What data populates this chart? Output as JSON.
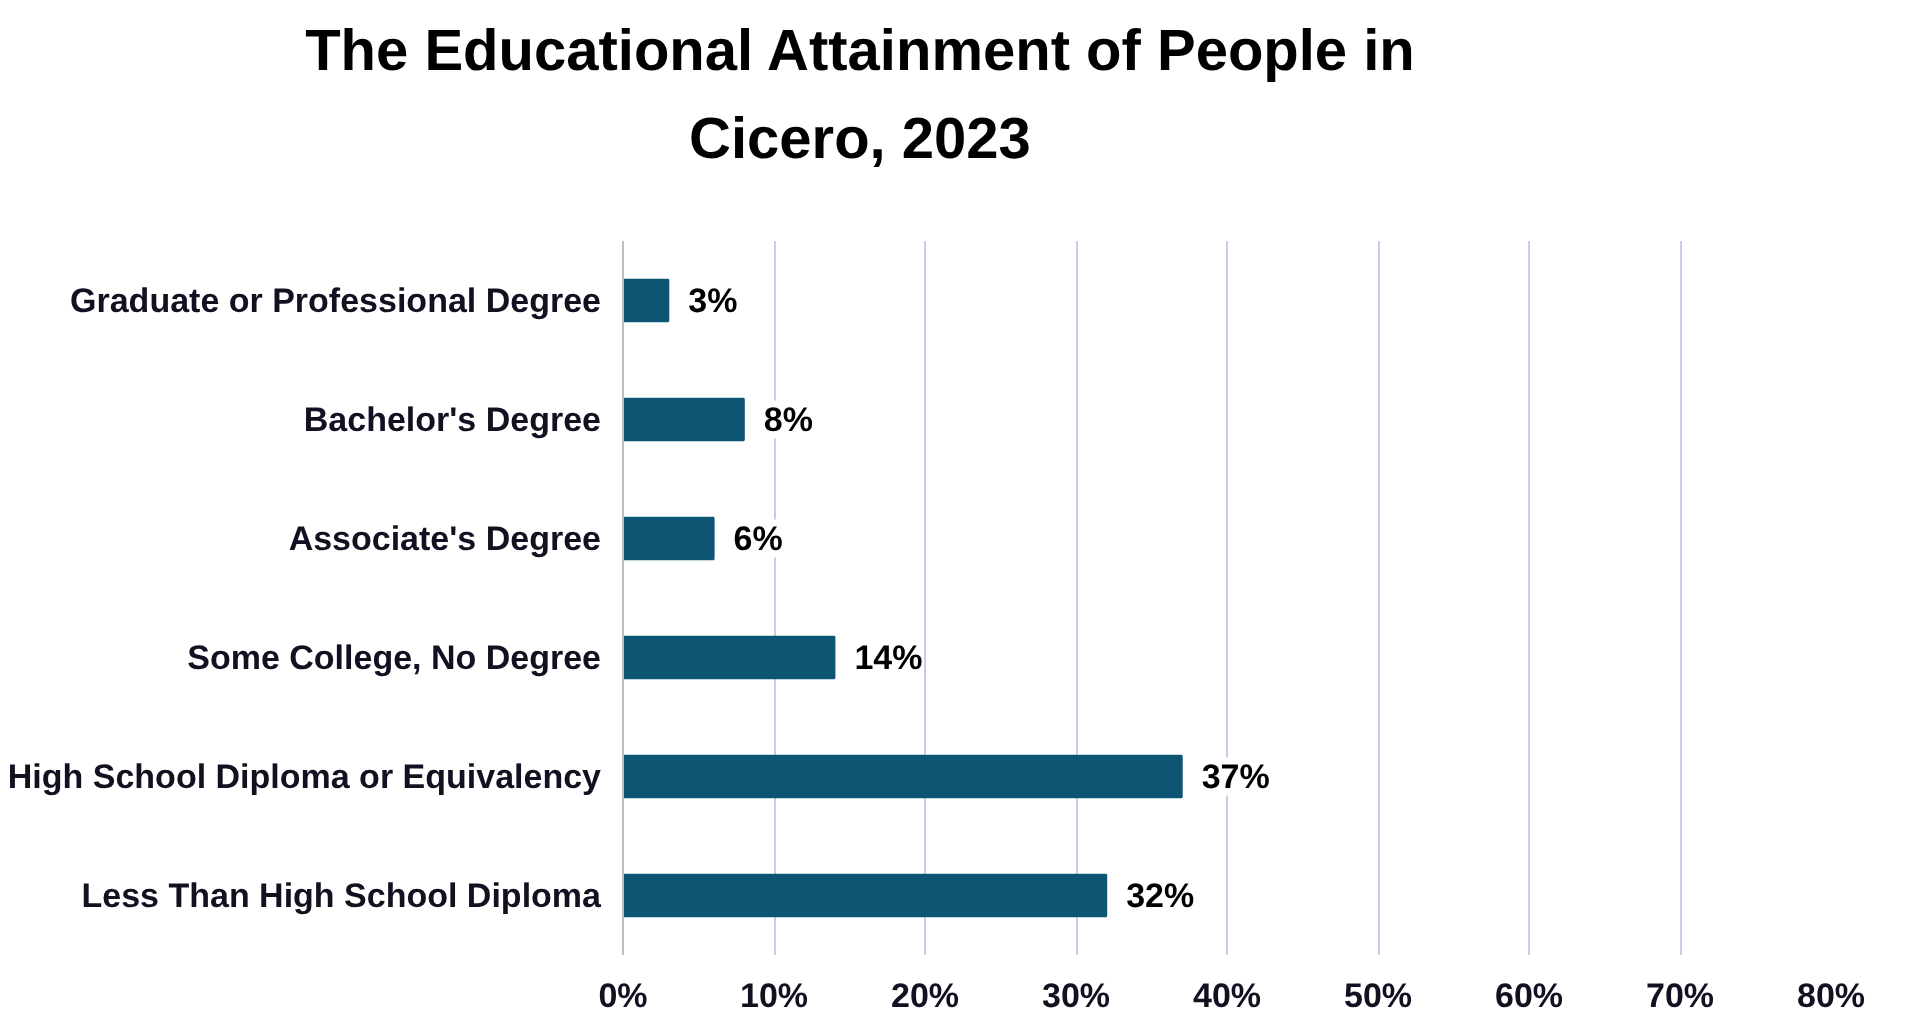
{
  "chart_data": {
    "type": "bar",
    "orientation": "horizontal",
    "title": "The Educational Attainment of People in Cicero, 2023",
    "categories": [
      "Graduate or Professional Degree",
      "Bachelor's Degree",
      "Associate's Degree",
      "Some College, No Degree",
      "High School Diploma or Equivalency",
      "Less Than High School Diploma"
    ],
    "values": [
      3,
      8,
      6,
      14,
      37,
      32
    ],
    "color": "#0e5574",
    "value_labels": [
      "3%",
      "8%",
      "6%",
      "14%",
      "37%",
      "32%"
    ],
    "xlim": [
      0,
      80
    ],
    "xticks": [
      {
        "value": 0,
        "label": "0%"
      },
      {
        "value": 10,
        "label": "10%"
      },
      {
        "value": 20,
        "label": "20%"
      },
      {
        "value": 30,
        "label": "30%"
      },
      {
        "value": 40,
        "label": "40%"
      },
      {
        "value": 50,
        "label": "50%"
      },
      {
        "value": 60,
        "label": "60%"
      },
      {
        "value": 70,
        "label": "70%"
      },
      {
        "value": 80,
        "label": "80%"
      }
    ],
    "grid": "x"
  }
}
